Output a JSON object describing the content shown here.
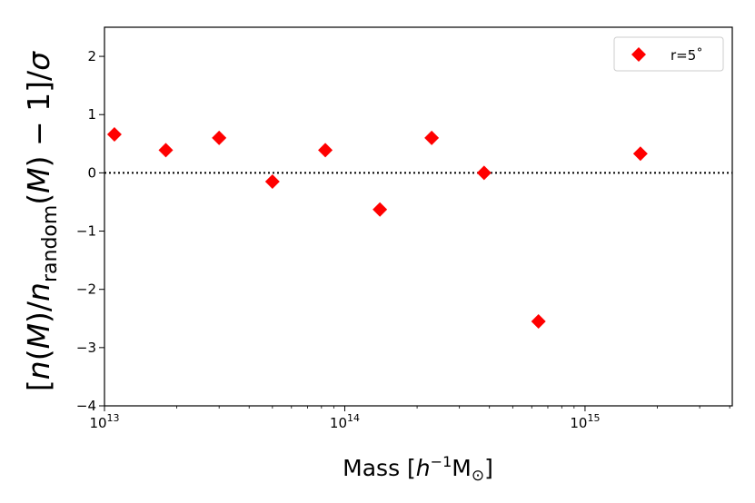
{
  "chart_data": {
    "type": "scatter",
    "xscale": "log",
    "xlim": [
      10000000000000.0,
      4100000000000000.0
    ],
    "ylim": [
      -4,
      2.5
    ],
    "xticks": [
      {
        "value": 10000000000000.0,
        "base": "10",
        "exp": "13"
      },
      {
        "value": 100000000000000.0,
        "base": "10",
        "exp": "14"
      },
      {
        "value": 1000000000000000.0,
        "base": "10",
        "exp": "15"
      }
    ],
    "yticks": [
      2,
      1,
      0,
      -1,
      -2,
      -3,
      -4
    ],
    "ytick_labels": [
      "2",
      "1",
      "0",
      "−1",
      "−2",
      "−3",
      "−4"
    ],
    "xlabel": {
      "text": "Mass [",
      "italic": "h",
      "sup": "−1",
      "unit": "M",
      "sub": "⊙",
      "close": "]"
    },
    "ylabel": {
      "open": "[",
      "n1": "n",
      "p1": "(",
      "m1": "M",
      "p2": ")/",
      "n2": "n",
      "sub": "random",
      "p3": "(",
      "m2": "M",
      "p4": ") − 1]/",
      "sigma": "σ"
    },
    "reference_line": {
      "y": 0,
      "style": "dotted"
    },
    "series": [
      {
        "name": "r=5˚",
        "marker": "diamond",
        "color": "#ff0000",
        "x": [
          11000000000000.0,
          18000000000000.0,
          30000000000000.0,
          50000000000000.0,
          83000000000000.0,
          140000000000000.0,
          230000000000000.0,
          380000000000000.0,
          640000000000000.0,
          1700000000000000.0
        ],
        "y": [
          0.66,
          0.39,
          0.6,
          -0.15,
          0.39,
          -0.63,
          0.6,
          0.0,
          -2.55,
          0.33
        ]
      }
    ],
    "legend": {
      "position": "top-right",
      "label": "r=5˚"
    }
  }
}
